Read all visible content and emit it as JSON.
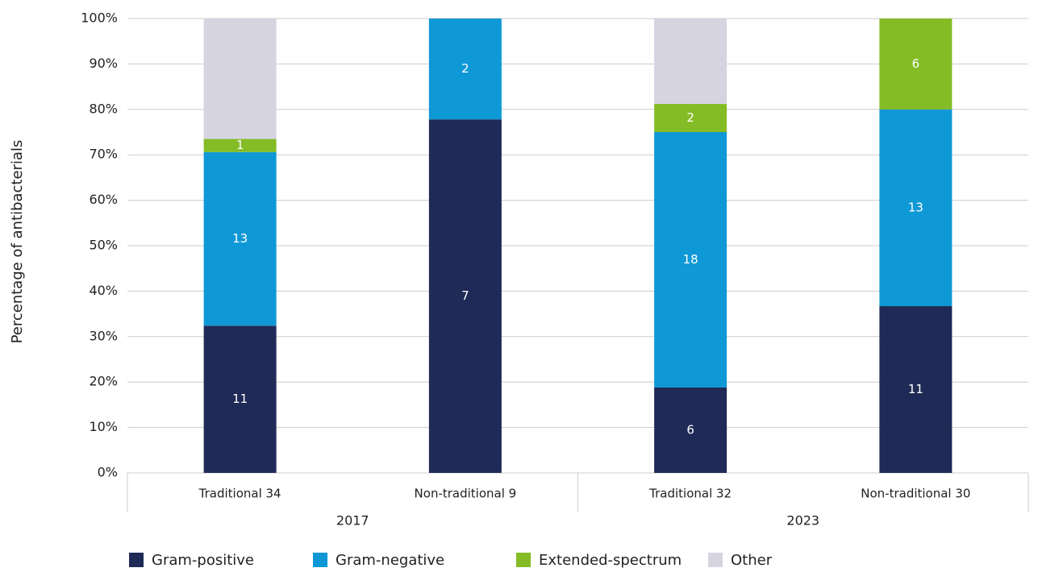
{
  "chart_data": {
    "type": "stacked_bar",
    "ylabel": "Percentage of antibacterials",
    "categories": [
      "Traditional 34",
      "Non-traditional 9",
      "Traditional 32",
      "Non-traditional 30"
    ],
    "groups": [
      {
        "label": "2017",
        "span": [
          0,
          1
        ]
      },
      {
        "label": "2023",
        "span": [
          2,
          3
        ]
      }
    ],
    "series": [
      {
        "name": "Gram-positive",
        "color": "#1f2a56",
        "values": [
          32.4,
          77.8,
          18.8,
          36.7
        ],
        "counts": [
          11,
          7,
          6,
          11
        ]
      },
      {
        "name": "Gram-negative",
        "color": "#0f98d6",
        "values": [
          38.2,
          22.2,
          56.2,
          43.3
        ],
        "counts": [
          13,
          2,
          18,
          13
        ]
      },
      {
        "name": "Extended-spectrum",
        "color": "#84bc26",
        "values": [
          2.9,
          0,
          6.2,
          20
        ],
        "counts": [
          1,
          null,
          2,
          6
        ]
      },
      {
        "name": "Other",
        "color": "#d5d4e0",
        "values": [
          26.5,
          0,
          18.8,
          0
        ]
      }
    ],
    "ylim": [
      0,
      100
    ],
    "yticks": [
      {
        "value": 0,
        "label": "0%"
      },
      {
        "value": 10,
        "label": "10%"
      },
      {
        "value": 20,
        "label": "20%"
      },
      {
        "value": 30,
        "label": "30%"
      },
      {
        "value": 40,
        "label": "40%"
      },
      {
        "value": 50,
        "label": "50%"
      },
      {
        "value": 60,
        "label": "60%"
      },
      {
        "value": 70,
        "label": "70%"
      },
      {
        "value": 80,
        "label": "80%"
      },
      {
        "value": 90,
        "label": "90%"
      },
      {
        "value": 100,
        "label": "100%"
      }
    ],
    "grid": true
  }
}
